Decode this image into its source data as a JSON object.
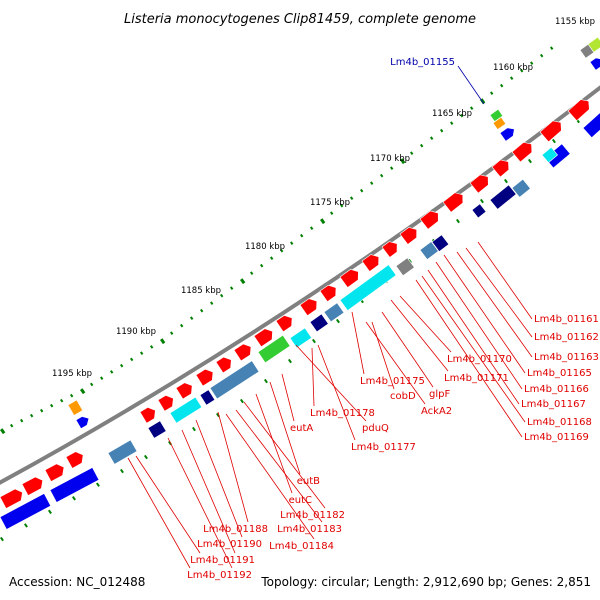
{
  "title": "Listeria monocytogenes Clip81459, complete genome",
  "footer": {
    "accession": "Accession: NC_012488",
    "topology": "Topology: circular; Length: 2,912,690 bp; Genes: 2,851"
  },
  "ticks": [
    "1155 kbp",
    "1160 kbp",
    "1165 kbp",
    "1170 kbp",
    "1175 kbp",
    "1180 kbp",
    "1185 kbp",
    "1190 kbp",
    "1195 kbp"
  ],
  "highlight_label": "Lm4b_01155",
  "right_labels": [
    "Lm4b_01161",
    "Lm4b_01162",
    "Lm4b_01163",
    "Lm4b_01165",
    "Lm4b_01166",
    "Lm4b_01167",
    "Lm4b_01168",
    "Lm4b_01169"
  ],
  "mid_labels": [
    "Lm4b_01170",
    "Lm4b_01171",
    "Lm4b_01175",
    "cobD",
    "glpF",
    "AckA2",
    "Lm4b_01178",
    "pduQ",
    "eutA",
    "Lm4b_01177"
  ],
  "left_labels": [
    "eutB",
    "eutC",
    "Lm4b_01182",
    "Lm4b_01183",
    "Lm4b_01188",
    "Lm4b_01184",
    "Lm4b_01190",
    "Lm4b_01191",
    "Lm4b_01192"
  ],
  "colors": {
    "backbone": "#808080",
    "forward_cds": "#ff0000",
    "cyan": "#00e5ee",
    "steel_blue": "#4682b4",
    "navy": "#000080",
    "royal_blue": "#0000ee",
    "green": "#33cc33",
    "orange": "#ff9900",
    "gray": "#808080",
    "yellow_green": "#b3e633",
    "label_red": "#e00000",
    "label_blue": "#0000aa",
    "tick_green": "#008000"
  }
}
